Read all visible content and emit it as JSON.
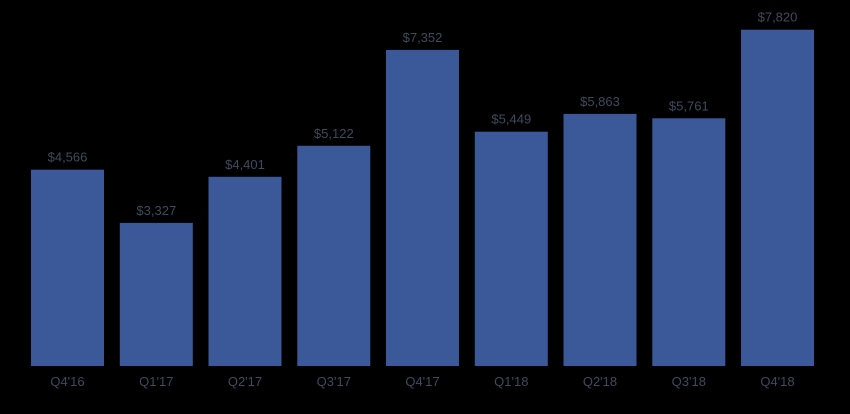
{
  "chart_data": {
    "type": "bar",
    "title": "",
    "xlabel": "",
    "ylabel": "",
    "categories": [
      "Q4'16",
      "Q1'17",
      "Q2'17",
      "Q3'17",
      "Q4'17",
      "Q1'18",
      "Q2'18",
      "Q3'18",
      "Q4'18"
    ],
    "values": [
      4566,
      3327,
      4401,
      5122,
      7352,
      5449,
      5863,
      5761,
      7820
    ],
    "value_labels": [
      "$4,566",
      "$3,327",
      "$4,401",
      "$5,122",
      "$7,352",
      "$5,449",
      "$5,863",
      "$5,761",
      "$7,820"
    ],
    "ylim": [
      0,
      8000
    ],
    "grid": false,
    "legend": "none"
  },
  "colors": {
    "background": "#000000",
    "bar": "#3b5998",
    "text": "#3f4a5c"
  }
}
